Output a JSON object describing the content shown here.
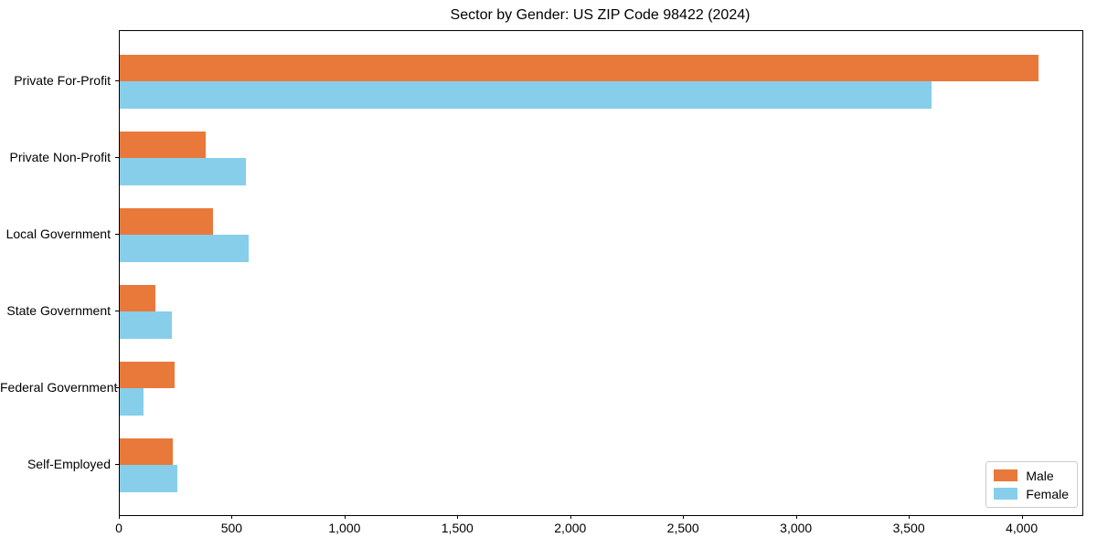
{
  "figure_title": "Sector by Gender: US ZIP Code 98422 (2024)",
  "chart_data": {
    "type": "bar",
    "orientation": "horizontal",
    "title": "Sector by Gender: US ZIP Code 98422 (2024)",
    "categories": [
      "Private For-Profit",
      "Private Non-Profit",
      "Local Government",
      "State Government",
      "Federal Government",
      "Self-Employed"
    ],
    "series": [
      {
        "name": "Male",
        "color": "#e8793b",
        "values": [
          4070,
          380,
          413,
          156,
          244,
          235
        ]
      },
      {
        "name": "Female",
        "color": "#87ceeb",
        "values": [
          3595,
          560,
          571,
          229,
          105,
          254
        ]
      }
    ],
    "xlabel": "",
    "ylabel": "",
    "xlim": [
      0,
      4265
    ],
    "xticks": [
      0,
      500,
      1000,
      1500,
      2000,
      2500,
      3000,
      3500,
      4000
    ],
    "xtick_labels": [
      "0",
      "500",
      "1,000",
      "1,500",
      "2,000",
      "2,500",
      "3,000",
      "3,500",
      "4,000"
    ],
    "grid": false,
    "legend_position": "lower right"
  }
}
